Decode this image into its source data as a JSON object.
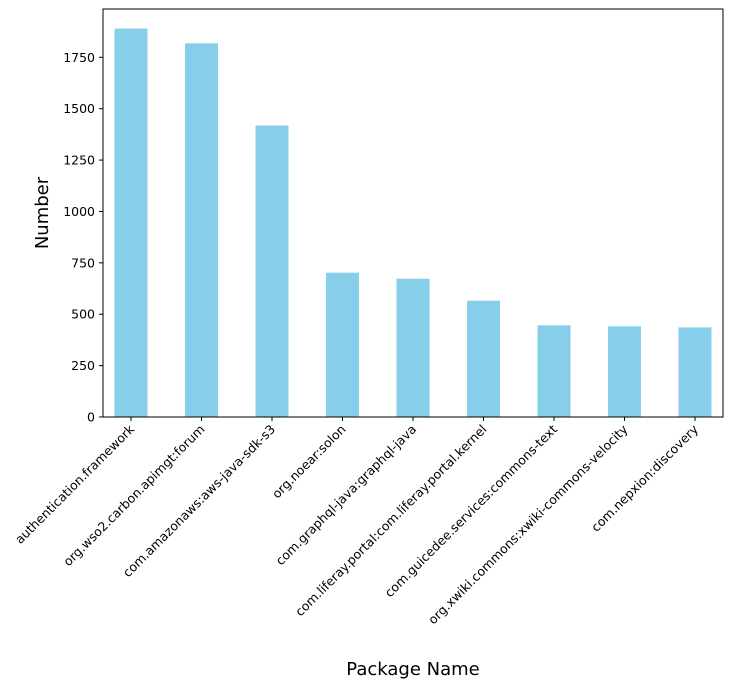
{
  "chart_data": {
    "type": "bar",
    "title": "",
    "xlabel": "Package Name",
    "ylabel": "Number",
    "categories": [
      "authentication.framework",
      "org.wso2.carbon.apimgt:forum",
      "com.amazonaws:aws-java-sdk-s3",
      "org.noear:solon",
      "com.graphql-java:graphql-java",
      "com.liferay.portal:com.liferay.portal.kernel",
      "com.guicedee.services:commons-text",
      "org.xwiki.commons:xwiki-commons-velocity",
      "com.nepxion:discovery"
    ],
    "values": [
      1890,
      1818,
      1418,
      702,
      673,
      566,
      446,
      441,
      436
    ],
    "yticks": [
      0,
      250,
      500,
      750,
      1000,
      1250,
      1500,
      1750
    ],
    "ylim": [
      0,
      1985
    ],
    "bar_color": "#87ceeb",
    "grid": false,
    "legend": "none"
  }
}
